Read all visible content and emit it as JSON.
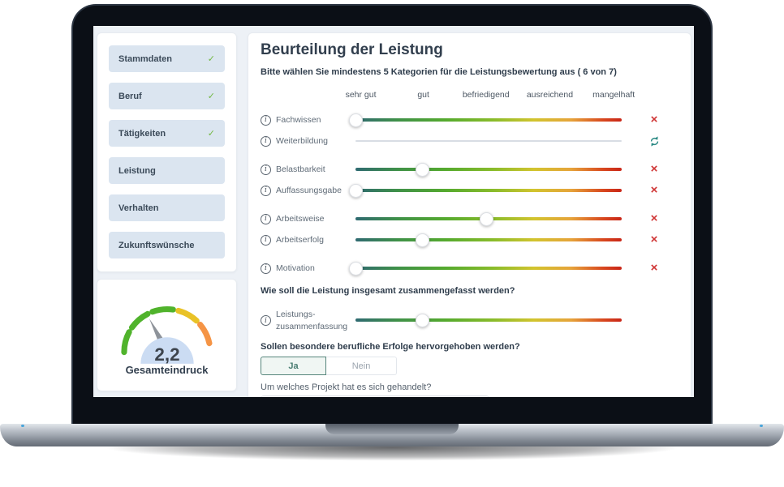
{
  "sidebar": {
    "items": [
      {
        "label": "Stammdaten",
        "checked": true
      },
      {
        "label": "Beruf",
        "checked": true
      },
      {
        "label": "Tätigkeiten",
        "checked": true
      },
      {
        "label": "Leistung",
        "checked": false
      },
      {
        "label": "Verhalten",
        "checked": false
      },
      {
        "label": "Zukunftswünsche",
        "checked": false
      }
    ],
    "check_icon": "✓",
    "check_color": "#72b843"
  },
  "gauge": {
    "value": "2,2",
    "label": "Gesamteindruck",
    "segment_colors": [
      "#50b32c",
      "#50b32c",
      "#50b32c",
      "#e9c227",
      "#f59445"
    ],
    "needle_color": "#8e939a",
    "dome_color": "#cbdcf3"
  },
  "main": {
    "title": "Beurteilung der Leistung",
    "subtitle": "Bitte wählen Sie mindestens 5 Kategorien für die Leistungsbewertung aus ( 6 von 7)",
    "scale_labels": [
      "sehr gut",
      "gut",
      "befriedigend",
      "ausreichend",
      "mangelhaft"
    ],
    "info_icon": "i",
    "remove_icon": "×",
    "remove_color": "#cf3434",
    "refresh_color": "#2b8a84",
    "sliders": [
      {
        "label": "Fachwissen",
        "value_pct": 0,
        "disabled": false,
        "action": "remove",
        "gap_before": false
      },
      {
        "label": "Weiterbildung",
        "value_pct": null,
        "disabled": true,
        "action": "refresh",
        "gap_before": false
      },
      {
        "label": "Belastbarkeit",
        "value_pct": 25,
        "disabled": false,
        "action": "remove",
        "gap_before": true
      },
      {
        "label": "Auffassungsgabe",
        "value_pct": 0,
        "disabled": false,
        "action": "remove",
        "gap_before": false
      },
      {
        "label": "Arbeitsweise",
        "value_pct": 49,
        "disabled": false,
        "action": "remove",
        "gap_before": true
      },
      {
        "label": "Arbeitserfolg",
        "value_pct": 25,
        "disabled": false,
        "action": "remove",
        "gap_before": false
      },
      {
        "label": "Motivation",
        "value_pct": 0,
        "disabled": false,
        "action": "remove",
        "gap_before": true
      }
    ],
    "summary_question": "Wie soll die Leistung insgesamt zusammengefasst werden?",
    "summary_slider": {
      "label_line1": "Leistungs-",
      "label_line2": "zusammenfassung",
      "value_pct": 25
    },
    "highlight_question": "Sollen besondere berufliche Erfolge hervorgehoben werden?",
    "toggle": {
      "yes_label": "Ja",
      "no_label": "Nein",
      "selected": "Ja"
    },
    "project_question": "Um welches Projekt hat es sich gehandelt?"
  },
  "colors": {
    "slider_gradient": [
      "#2f6a71",
      "#3f9148",
      "#55aa2e",
      "#8abc2b",
      "#d2c42e",
      "#e6a33a",
      "#d8481f",
      "#c92517"
    ],
    "disabled_track": "#d8dde4",
    "sidebar_button_bg": "#dbe5f0",
    "screen_bg": "#edf1f6"
  }
}
